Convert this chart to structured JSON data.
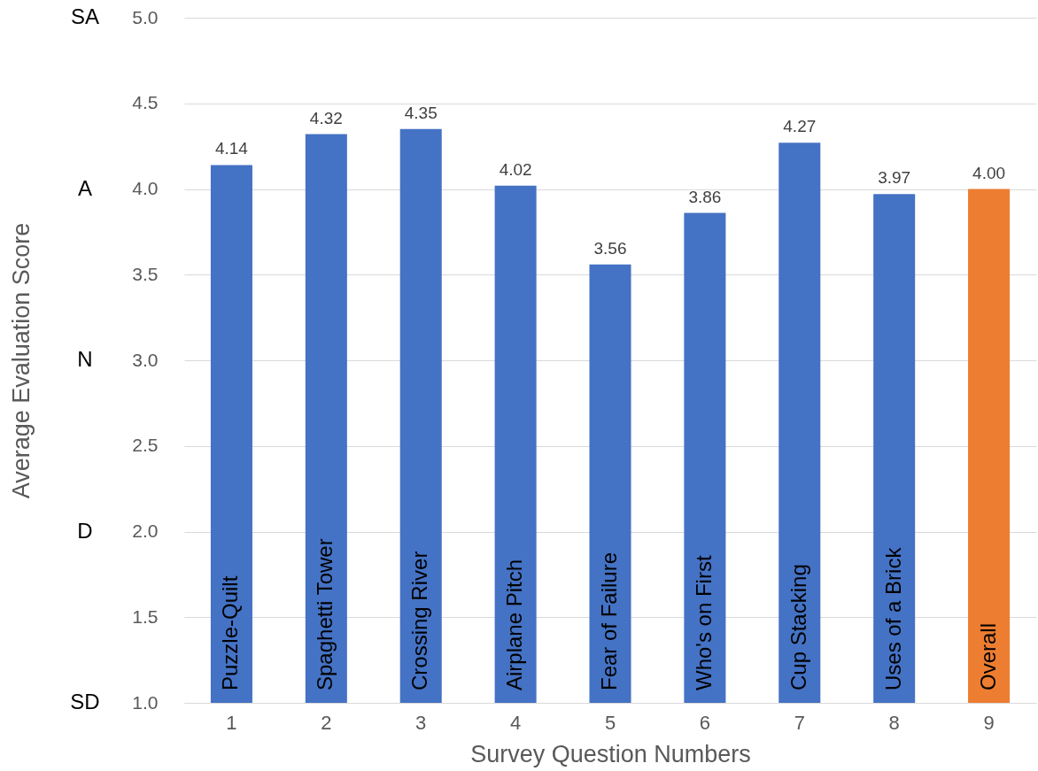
{
  "chart_data": {
    "type": "bar",
    "xlabel": "Survey Question Numbers",
    "ylabel": "Average Evaluation Score",
    "categories": [
      "1",
      "2",
      "3",
      "4",
      "5",
      "6",
      "7",
      "8",
      "9"
    ],
    "values": [
      4.14,
      4.32,
      4.35,
      4.02,
      3.56,
      3.86,
      4.27,
      3.97,
      4.0
    ],
    "value_labels": [
      "4.14",
      "4.32",
      "4.35",
      "4.02",
      "3.56",
      "3.86",
      "4.27",
      "3.97",
      "4.00"
    ],
    "colors": [
      "#4472c4",
      "#4472c4",
      "#4472c4",
      "#4472c4",
      "#4472c4",
      "#4472c4",
      "#4472c4",
      "#4472c4",
      "#ed7d31"
    ],
    "ylim": [
      1.0,
      5.0
    ],
    "yticks": [
      {
        "value": 1,
        "label": "1.0"
      },
      1.5,
      {
        "value": 2,
        "label": "2.0"
      },
      2.5,
      {
        "value": 3,
        "label": "3.0"
      },
      3.5,
      {
        "value": 4,
        "label": "4.0"
      },
      4.5,
      {
        "value": 5,
        "label": "5.0"
      }
    ],
    "annotations": [
      "Puzzle-Quilt",
      "Spaghetti Tower",
      "Crossing River",
      "Airplane Pitch",
      "Fear of Failure",
      "Who's on First",
      "Cup Stacking",
      "Uses of a Brick",
      "Overall",
      "SA",
      "A",
      "N",
      "D",
      "SD"
    ],
    "grid": "y"
  }
}
